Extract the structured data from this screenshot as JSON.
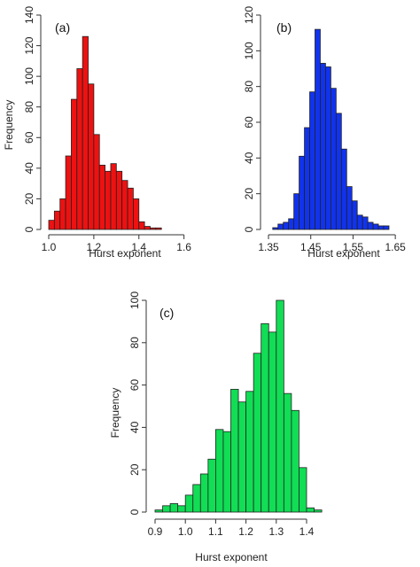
{
  "chart_data": [
    {
      "panel": "(a)",
      "type": "bar",
      "color": "#ee1111",
      "xlabel": "Hurst exponent",
      "ylabel": "Frequency",
      "xlim": [
        1.0,
        1.68
      ],
      "ylim": [
        0,
        140
      ],
      "bin_start": 1.0,
      "bin_width": 0.025,
      "values": [
        6,
        12,
        20,
        48,
        85,
        105,
        126,
        95,
        62,
        42,
        38,
        43,
        38,
        32,
        27,
        20,
        5,
        2,
        1,
        1
      ],
      "x_ticks": [
        "1.0",
        "1.2",
        "1.4",
        "1.6"
      ],
      "x_tick_values": [
        1.0,
        1.2,
        1.4,
        1.6
      ],
      "y_ticks": [
        "0",
        "20",
        "40",
        "60",
        "80",
        "100",
        "120",
        "140"
      ],
      "y_tick_values": [
        0,
        20,
        40,
        60,
        80,
        100,
        120,
        140
      ]
    },
    {
      "panel": "(b)",
      "type": "bar",
      "color": "#1133ee",
      "xlabel": "Hurst exponent",
      "ylabel": "",
      "xlim": [
        1.35,
        1.7
      ],
      "ylim": [
        0,
        120
      ],
      "bin_start": 1.36,
      "bin_width": 0.0125,
      "values": [
        1,
        3,
        4,
        6,
        20,
        41,
        57,
        77,
        112,
        93,
        91,
        79,
        65,
        45,
        24,
        16,
        8,
        7,
        4,
        3,
        2,
        2
      ],
      "x_ticks": [
        "1.35",
        "1.45",
        "1.55",
        "1.65"
      ],
      "x_tick_values": [
        1.35,
        1.45,
        1.55,
        1.65
      ],
      "y_ticks": [
        "0",
        "20",
        "40",
        "60",
        "80",
        "100",
        "120"
      ],
      "y_tick_values": [
        0,
        20,
        40,
        60,
        80,
        100,
        120
      ]
    },
    {
      "panel": "(c)",
      "type": "bar",
      "color": "#11dd55",
      "xlabel": "Hurst exponent",
      "ylabel": "Frequency",
      "xlim": [
        0.9,
        1.4
      ],
      "ylim": [
        0,
        100
      ],
      "bin_start": 0.9,
      "bin_width": 0.025,
      "values": [
        1,
        3,
        4,
        3,
        8,
        13,
        18,
        25,
        39,
        38,
        58,
        52,
        57,
        75,
        89,
        85,
        100,
        56,
        48,
        21,
        2,
        1
      ],
      "x_ticks": [
        "0.9",
        "1.0",
        "1.1",
        "1.2",
        "1.3",
        "1.4"
      ],
      "x_tick_values": [
        0.9,
        1.0,
        1.1,
        1.2,
        1.3,
        1.4
      ],
      "y_ticks": [
        "0",
        "20",
        "40",
        "60",
        "80",
        "100"
      ],
      "y_tick_values": [
        0,
        20,
        40,
        60,
        80,
        100
      ]
    }
  ]
}
